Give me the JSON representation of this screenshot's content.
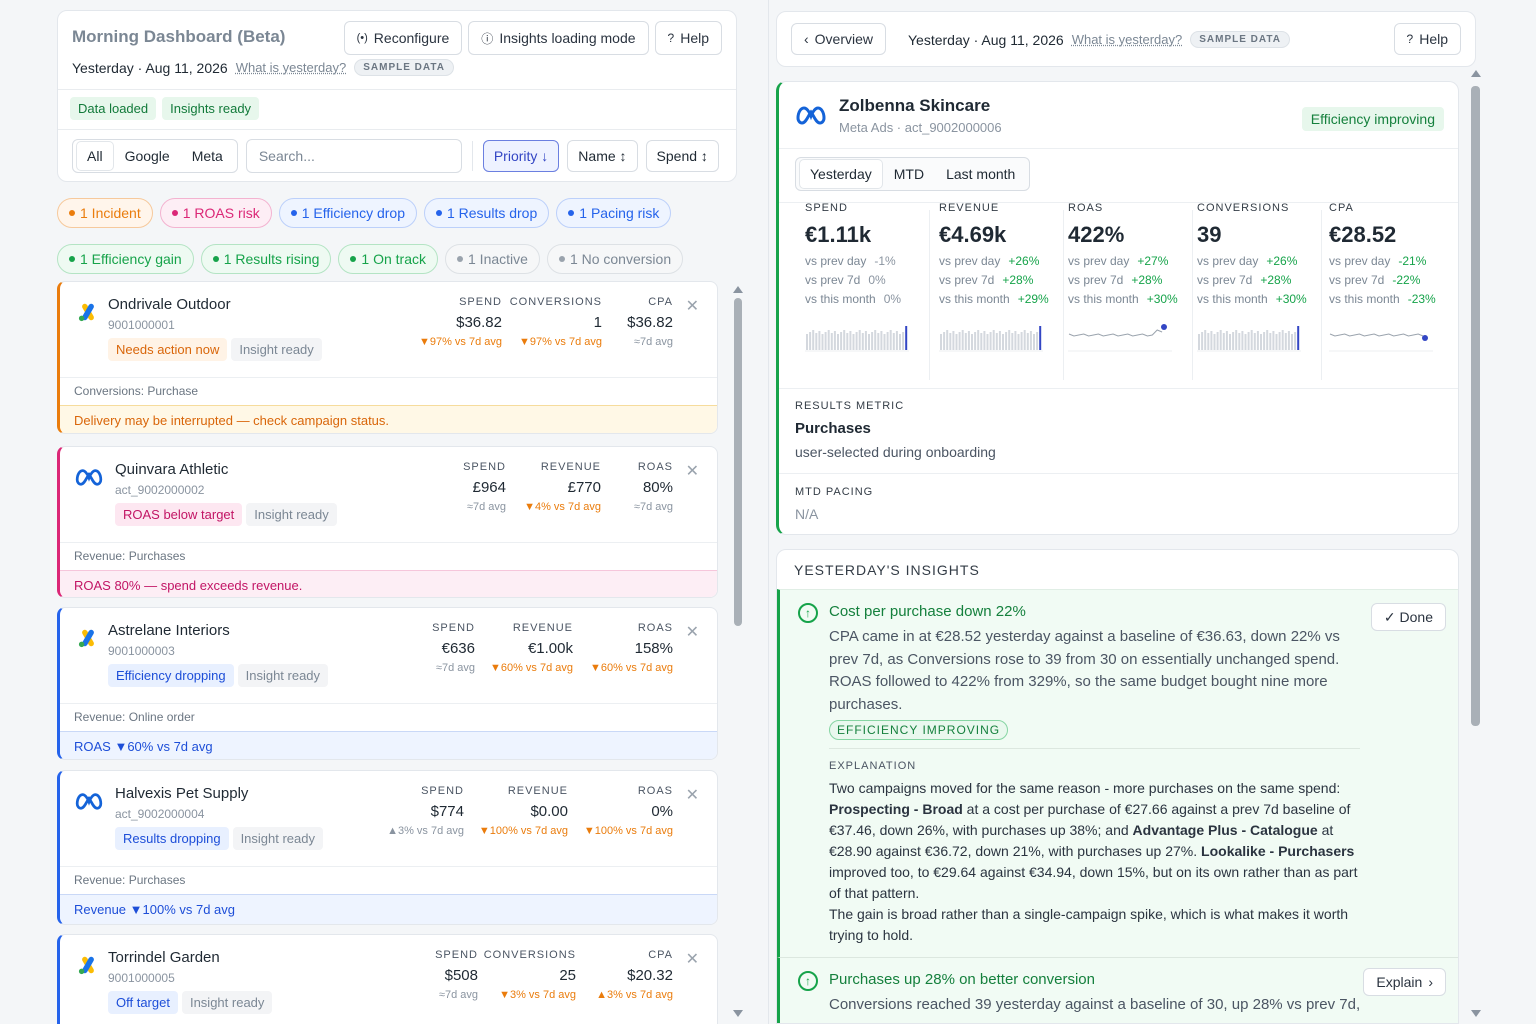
{
  "left": {
    "title": "Morning Dashboard (Beta)",
    "buttons": {
      "reconfigure": "Reconfigure",
      "insights_mode": "Insights loading mode",
      "help": "Help"
    },
    "date": "Yesterday · Aug 11, 2026",
    "what_is_yesterday": "What is yesterday?",
    "sample": "SAMPLE DATA",
    "status": [
      "Data loaded",
      "Insights ready"
    ],
    "platform_tabs": [
      "All",
      "Google",
      "Meta"
    ],
    "search_placeholder": "Search...",
    "sorts": [
      "Priority ↓",
      "Name ↕",
      "Spend ↕"
    ]
  },
  "chips": [
    {
      "label": "1 Incident",
      "color": "#ea7c0c"
    },
    {
      "label": "1 ROAS risk",
      "color": "#db2777"
    },
    {
      "label": "1 Efficiency drop",
      "color": "#2563eb"
    },
    {
      "label": "1 Results drop",
      "color": "#2563eb"
    },
    {
      "label": "1 Pacing risk",
      "color": "#2563eb"
    },
    {
      "label": "1 Efficiency gain",
      "color": "#16a34a"
    },
    {
      "label": "1 Results rising",
      "color": "#16a34a"
    },
    {
      "label": "1 On track",
      "color": "#16a34a"
    },
    {
      "label": "1 Inactive",
      "color": "#9aa3ad"
    },
    {
      "label": "1 No conversion",
      "color": "#9aa3ad"
    }
  ],
  "accounts": [
    {
      "name": "Ondrivale Outdoor",
      "id": "9001000001",
      "platform": "google",
      "status_tag": "Needs action now",
      "insight_tag": "Insight ready",
      "metrics": [
        {
          "label": "SPEND",
          "value": "$36.82",
          "delta": "▼97% vs 7d avg"
        },
        {
          "label": "CONVERSIONS",
          "value": "1",
          "delta": "▼97% vs 7d avg"
        },
        {
          "label": "CPA",
          "value": "$36.82",
          "delta": "≈7d avg"
        }
      ],
      "conv_label": "Conversions: Purchase",
      "note": "Delivery may be interrupted — check campaign status."
    },
    {
      "name": "Quinvara Athletic",
      "id": "act_9002000002",
      "platform": "meta",
      "status_tag": "ROAS below target",
      "insight_tag": "Insight ready",
      "metrics": [
        {
          "label": "SPEND",
          "value": "£964",
          "delta": "≈7d avg"
        },
        {
          "label": "REVENUE",
          "value": "£770",
          "delta": "▼4% vs 7d avg"
        },
        {
          "label": "ROAS",
          "value": "80%",
          "delta": "≈7d avg"
        }
      ],
      "conv_label": "Revenue: Purchases",
      "note": "ROAS 80% — spend exceeds revenue."
    },
    {
      "name": "Astrelane Interiors",
      "id": "9001000003",
      "platform": "google",
      "status_tag": "Efficiency dropping",
      "insight_tag": "Insight ready",
      "metrics": [
        {
          "label": "SPEND",
          "value": "€636",
          "delta": "≈7d avg"
        },
        {
          "label": "REVENUE",
          "value": "€1.00k",
          "delta": "▼60% vs 7d avg"
        },
        {
          "label": "ROAS",
          "value": "158%",
          "delta": "▼60% vs 7d avg"
        }
      ],
      "conv_label": "Revenue: Online order",
      "note": "ROAS ▼60% vs 7d avg"
    },
    {
      "name": "Halvexis Pet Supply",
      "id": "act_9002000004",
      "platform": "meta",
      "status_tag": "Results dropping",
      "insight_tag": "Insight ready",
      "metrics": [
        {
          "label": "SPEND",
          "value": "$774",
          "delta": "▲3% vs 7d avg"
        },
        {
          "label": "REVENUE",
          "value": "$0.00",
          "delta": "▼100% vs 7d avg"
        },
        {
          "label": "ROAS",
          "value": "0%",
          "delta": "▼100% vs 7d avg"
        }
      ],
      "conv_label": "Revenue: Purchases",
      "note": "Revenue ▼100% vs 7d avg"
    },
    {
      "name": "Torrindel Garden",
      "id": "9001000005",
      "platform": "google",
      "status_tag": "Off target",
      "insight_tag": "Insight ready",
      "metrics": [
        {
          "label": "SPEND",
          "value": "$508",
          "delta": "≈7d avg"
        },
        {
          "label": "CONVERSIONS",
          "value": "25",
          "delta": "▼3% vs 7d avg"
        },
        {
          "label": "CPA",
          "value": "$20.32",
          "delta": "▲3% vs 7d avg"
        }
      ]
    }
  ],
  "right": {
    "overview": "Overview",
    "date": "Yesterday · Aug 11, 2026",
    "what_is_yesterday": "What is yesterday?",
    "sample": "SAMPLE DATA",
    "help": "Help",
    "account_name": "Zolbenna Skincare",
    "account_sub": "Meta Ads · act_9002000006",
    "badge": "Efficiency improving",
    "periods": [
      "Yesterday",
      "MTD",
      "Last month"
    ],
    "kpis": [
      {
        "label": "SPEND",
        "value": "€1.11k",
        "cmp": [
          [
            "vs prev day",
            "-1%"
          ],
          [
            "vs prev 7d",
            "0%"
          ],
          [
            "vs this month",
            "0%"
          ]
        ],
        "tone": [
          "muted",
          "muted",
          "muted"
        ],
        "spark": "bar"
      },
      {
        "label": "REVENUE",
        "value": "€4.69k",
        "cmp": [
          [
            "vs prev day",
            "+26%"
          ],
          [
            "vs prev 7d",
            "+28%"
          ],
          [
            "vs this month",
            "+29%"
          ]
        ],
        "tone": [
          "g",
          "g",
          "g"
        ],
        "spark": "bar"
      },
      {
        "label": "ROAS",
        "value": "422%",
        "cmp": [
          [
            "vs prev day",
            "+27%"
          ],
          [
            "vs prev 7d",
            "+28%"
          ],
          [
            "vs this month",
            "+30%"
          ]
        ],
        "tone": [
          "g",
          "g",
          "g"
        ],
        "spark": "line"
      },
      {
        "label": "CONVERSIONS",
        "value": "39",
        "cmp": [
          [
            "vs prev day",
            "+26%"
          ],
          [
            "vs prev 7d",
            "+28%"
          ],
          [
            "vs this month",
            "+30%"
          ]
        ],
        "tone": [
          "g",
          "g",
          "g"
        ],
        "spark": "bar"
      },
      {
        "label": "CPA",
        "value": "€28.52",
        "cmp": [
          [
            "vs prev day",
            "-21%"
          ],
          [
            "vs prev 7d",
            "-22%"
          ],
          [
            "vs this month",
            "-23%"
          ]
        ],
        "tone": [
          "g",
          "g",
          "g"
        ],
        "spark": "line"
      }
    ],
    "results_metric_label": "RESULTS METRIC",
    "results_metric_value": "Purchases",
    "results_metric_sub": "user-selected during onboarding",
    "mtd_pacing_label": "MTD PACING",
    "mtd_pacing_value": "N/A",
    "insights_title": "YESTERDAY'S INSIGHTS",
    "insight1": {
      "title": "Cost per purchase down 22%",
      "done": "✓ Done",
      "body": "CPA came in at €28.52 yesterday against a baseline of €36.63, down 22% vs prev 7d, as Conversions rose to 39 from 30 on essentially unchanged spend. ROAS followed to 422% from 329%, so the same budget bought nine more purchases.",
      "tag": "EFFICIENCY IMPROVING",
      "explanation_label": "EXPLANATION",
      "exp_intro": "Two campaigns moved for the same reason - more purchases on the same spend:",
      "c1": "Prospecting - Broad",
      "c1_text": " at a cost per purchase of €27.66 against a prev 7d baseline of €37.46, down 26%, with purchases up 38%; and ",
      "c2": "Advantage Plus - Catalogue",
      "c2_text": " at €28.90 against €36.72, down 21%, with purchases up 27%. ",
      "c3": "Lookalike - Purchasers",
      "c3_text": " improved too, to €29.64 against €34.94, down 15%, but on its own rather than as part of that pattern.",
      "exp_outro": "The gain is broad rather than a single-campaign spike, which is what makes it worth trying to hold."
    },
    "insight2": {
      "title": "Purchases up 28% on better conversion",
      "explain": "Explain",
      "body": "Conversions reached 39 yesterday against a baseline of 30, up 28% vs prev 7d,"
    }
  },
  "colors": {
    "accent_green": "#16a34a",
    "brand_blue": "#3346c4",
    "orange": "#ea7c0c",
    "pink": "#db2777"
  }
}
